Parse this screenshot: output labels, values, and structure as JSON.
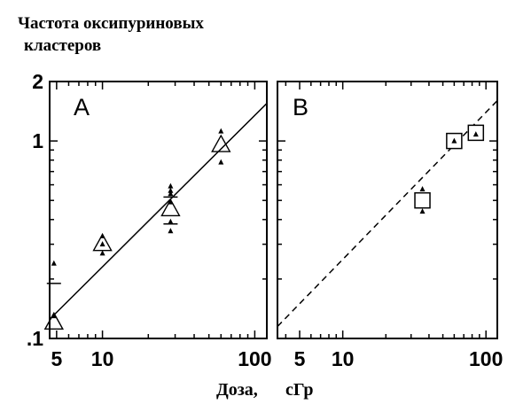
{
  "ylabel_line1": "Частота оксипуриновых",
  "ylabel_line2": "кластеров",
  "xlabel_word": "Доза,",
  "xlabel_unit": "сГр",
  "chart_data": [
    {
      "type": "scatter",
      "panel_label": "A",
      "xscale": "log",
      "yscale": "log",
      "xlim": [
        4.5,
        120
      ],
      "ylim": [
        0.1,
        2
      ],
      "xticks": [
        5,
        10,
        100
      ],
      "xtick_labels": [
        "5",
        "10",
        "100"
      ],
      "yticks": [
        0.1,
        1,
        2
      ],
      "ytick_labels": [
        ".1",
        "1",
        "2"
      ],
      "series": [
        {
          "marker": "open-triangle",
          "x": [
            4.8,
            10,
            28,
            60
          ],
          "y": [
            0.12,
            0.3,
            0.45,
            0.95
          ]
        },
        {
          "marker": "small-triangle",
          "x": [
            4.8,
            4.8,
            10,
            10,
            10,
            28,
            28,
            28,
            28,
            28,
            28,
            60,
            60
          ],
          "y": [
            0.13,
            0.24,
            0.27,
            0.3,
            0.33,
            0.35,
            0.39,
            0.49,
            0.54,
            0.56,
            0.59,
            0.78,
            1.12
          ]
        },
        {
          "marker": "dash",
          "x": [
            4.8,
            28,
            28
          ],
          "y": [
            0.19,
            0.38,
            0.52
          ]
        }
      ],
      "fit_line": {
        "style": "solid",
        "x": [
          4.5,
          120
        ],
        "y": [
          0.125,
          1.55
        ]
      }
    },
    {
      "type": "scatter",
      "panel_label": "B",
      "xscale": "log",
      "yscale": "log",
      "xlim": [
        3.5,
        120
      ],
      "ylim": [
        0.1,
        2
      ],
      "xticks": [
        5,
        10,
        100
      ],
      "xtick_labels": [
        "5",
        "10",
        "100"
      ],
      "series": [
        {
          "marker": "open-square",
          "x": [
            36,
            60,
            85
          ],
          "y": [
            0.5,
            1,
            1.1
          ]
        },
        {
          "marker": "small-triangle",
          "x": [
            36,
            36,
            60,
            85
          ],
          "y": [
            0.57,
            0.44,
            1,
            1.08
          ]
        }
      ],
      "fit_line": {
        "style": "dashed",
        "x": [
          3.5,
          120
        ],
        "y": [
          0.115,
          1.6
        ]
      }
    }
  ]
}
